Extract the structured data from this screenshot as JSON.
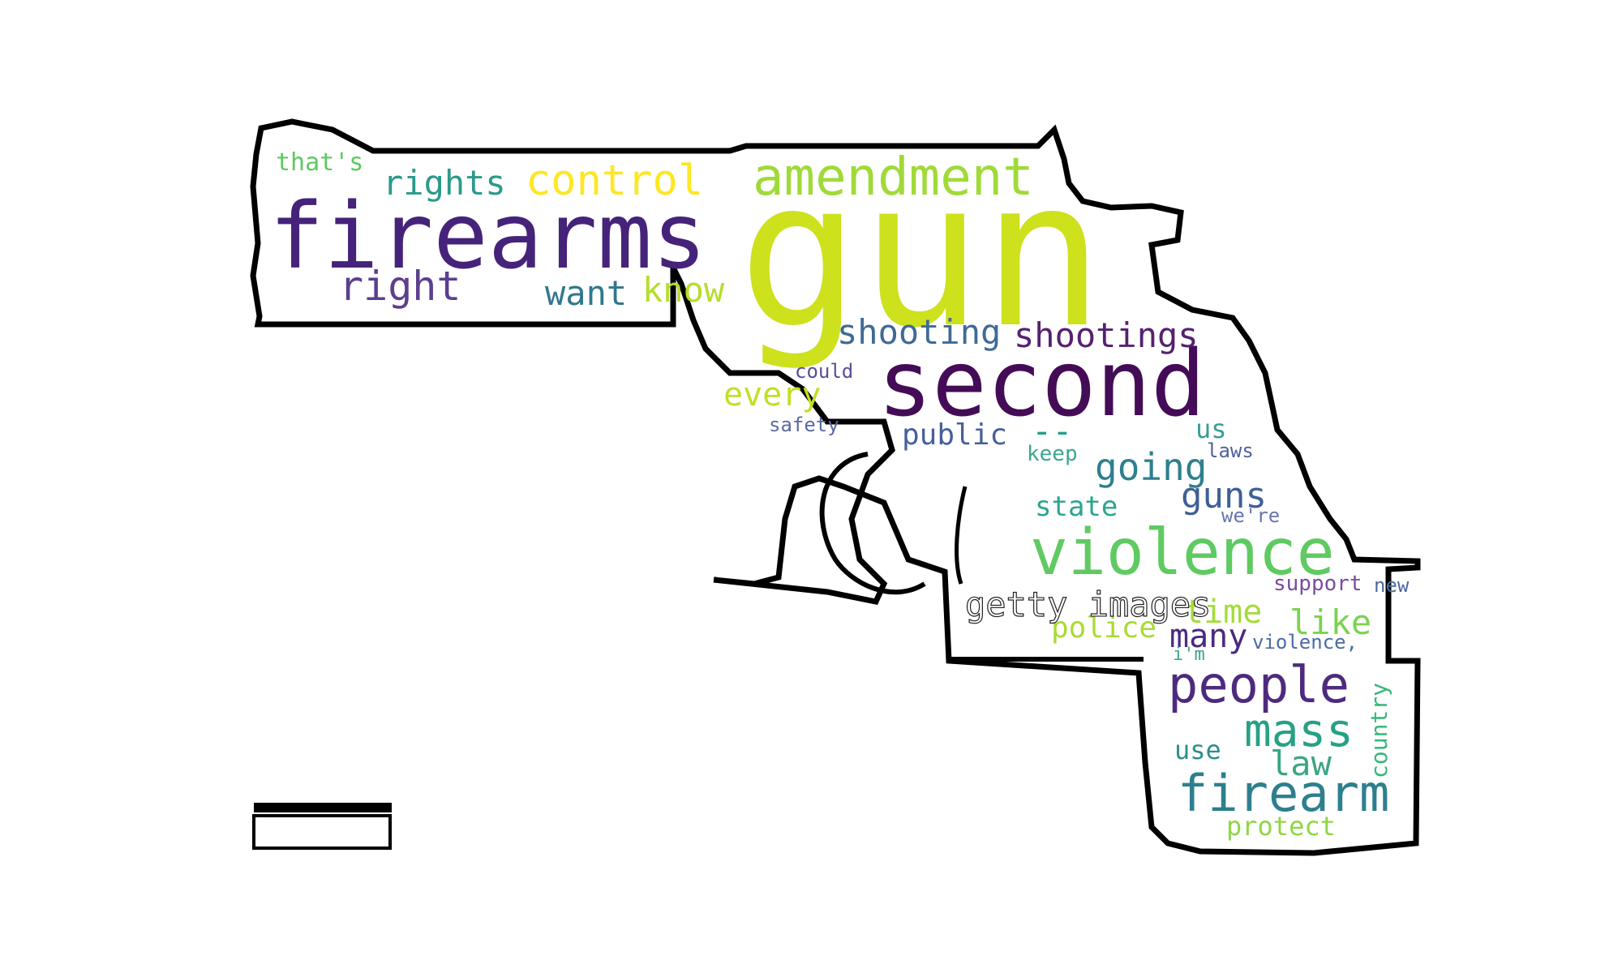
{
  "words": [
    {
      "text": "gun",
      "color": "#cde11d"
    },
    {
      "text": "firearms",
      "color": "#46237a"
    },
    {
      "text": "second",
      "color": "#440c56"
    },
    {
      "text": "amendment",
      "color": "#a0da39"
    },
    {
      "text": "control",
      "color": "#fde725"
    },
    {
      "text": "rights",
      "color": "#2a9a8a"
    },
    {
      "text": "that's",
      "color": "#5ec962"
    },
    {
      "text": "right",
      "color": "#5c3f8f"
    },
    {
      "text": "want",
      "color": "#31778e"
    },
    {
      "text": "know",
      "color": "#b5de2b"
    },
    {
      "text": "shooting",
      "color": "#3e6b95"
    },
    {
      "text": "shootings",
      "color": "#55226f"
    },
    {
      "text": "could",
      "color": "#5a4c9a"
    },
    {
      "text": "every",
      "color": "#c2df23"
    },
    {
      "text": "safety",
      "color": "#5a6aa6"
    },
    {
      "text": "public",
      "color": "#46609c"
    },
    {
      "text": "--",
      "color": "#1fa187"
    },
    {
      "text": "us",
      "color": "#3a9c96"
    },
    {
      "text": "keep",
      "color": "#3da592"
    },
    {
      "text": "laws",
      "color": "#4f5fa0"
    },
    {
      "text": "going",
      "color": "#2f7f8e"
    },
    {
      "text": "guns",
      "color": "#3f5f96"
    },
    {
      "text": "we're",
      "color": "#6a76b0"
    },
    {
      "text": "state",
      "color": "#2ba58f"
    },
    {
      "text": "violence",
      "color": "#5fca61"
    },
    {
      "text": "support",
      "color": "#7a4c9e"
    },
    {
      "text": "new",
      "color": "#4c6aa0"
    },
    {
      "text": "time",
      "color": "#a4dc3a"
    },
    {
      "text": "like",
      "color": "#7cd250"
    },
    {
      "text": "police",
      "color": "#a8db34"
    },
    {
      "text": "many",
      "color": "#4b2a80"
    },
    {
      "text": "i'm",
      "color": "#3aa48e"
    },
    {
      "text": "violence,",
      "color": "#4a6ca6"
    },
    {
      "text": "people",
      "color": "#4e2a7e"
    },
    {
      "text": "mass",
      "color": "#26a184"
    },
    {
      "text": "country",
      "color": "#35b77a"
    },
    {
      "text": "use",
      "color": "#2e8d8c"
    },
    {
      "text": "law",
      "color": "#3aa682"
    },
    {
      "text": "firearm",
      "color": "#2d7f8e"
    },
    {
      "text": "protect",
      "color": "#8fd744"
    }
  ],
  "logo_text": "getty images"
}
